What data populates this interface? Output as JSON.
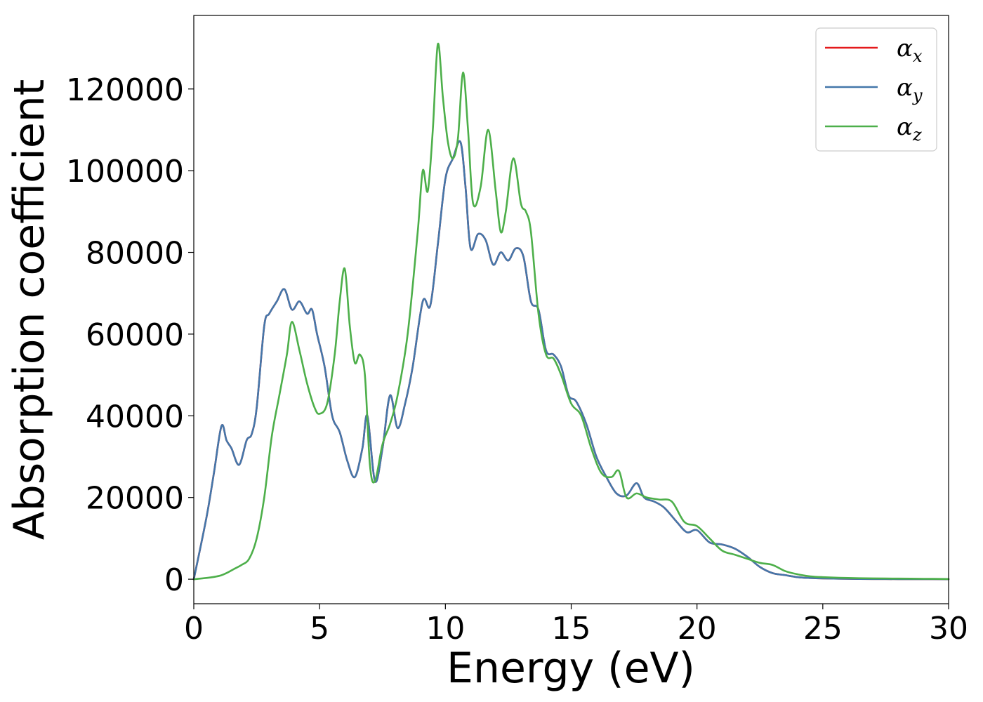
{
  "chart_data": {
    "type": "line",
    "title": "",
    "xlabel": "Energy (eV)",
    "ylabel": "Absorption coefficient",
    "xlim": [
      0,
      30
    ],
    "ylim": [
      -6000,
      138000
    ],
    "xticks": [
      0,
      5,
      10,
      15,
      20,
      25,
      30
    ],
    "xtick_labels": [
      "0",
      "5",
      "10",
      "15",
      "20",
      "25",
      "30"
    ],
    "yticks": [
      0,
      20000,
      40000,
      60000,
      80000,
      100000,
      120000
    ],
    "ytick_labels": [
      "0",
      "20000",
      "40000",
      "60000",
      "80000",
      "100000",
      "120000"
    ],
    "grid": false,
    "legend_position": "top-right",
    "series": [
      {
        "name": "α_x",
        "label_main": "α",
        "label_sub": "x",
        "color": "#e41a1c",
        "x": [
          0,
          0.5,
          0.8,
          1.1,
          1.3,
          1.5,
          1.8,
          2.1,
          2.3,
          2.5,
          2.8,
          3.0,
          3.3,
          3.6,
          3.9,
          4.2,
          4.5,
          4.7,
          4.9,
          5.2,
          5.5,
          5.8,
          6.1,
          6.4,
          6.7,
          6.9,
          7.2,
          7.5,
          7.8,
          8.1,
          8.4,
          8.7,
          9.1,
          9.4,
          9.7,
          10.0,
          10.3,
          10.6,
          10.8,
          11.0,
          11.3,
          11.6,
          11.9,
          12.2,
          12.5,
          12.8,
          13.1,
          13.4,
          13.7,
          14.0,
          14.3,
          14.6,
          14.9,
          15.2,
          15.6,
          16.0,
          16.4,
          16.8,
          17.2,
          17.6,
          17.9,
          18.3,
          18.7,
          19.2,
          19.6,
          20.0,
          20.5,
          21.0,
          21.5,
          22.0,
          22.5,
          23.0,
          23.5,
          24.0,
          24.5,
          25.0,
          26.0,
          27.0,
          28.0,
          29.0,
          30.0
        ],
        "y": [
          0,
          15000,
          26000,
          37500,
          34000,
          32000,
          28000,
          34000,
          35500,
          42000,
          62000,
          65000,
          68000,
          71000,
          66000,
          68000,
          65000,
          66000,
          60000,
          52000,
          40000,
          36000,
          29000,
          25000,
          32000,
          40000,
          24000,
          32000,
          45000,
          37000,
          43000,
          52000,
          68000,
          67000,
          82000,
          98000,
          103000,
          107000,
          96000,
          81000,
          84500,
          83000,
          77000,
          80000,
          78000,
          81000,
          79000,
          68000,
          66000,
          56000,
          55000,
          52000,
          45000,
          43500,
          38000,
          30000,
          25000,
          21000,
          20500,
          23500,
          20000,
          19000,
          17500,
          14000,
          11500,
          12000,
          9000,
          8500,
          7500,
          5500,
          3000,
          1500,
          1000,
          500,
          300,
          200,
          100,
          50,
          30,
          20,
          10
        ]
      },
      {
        "name": "α_y",
        "label_main": "α",
        "label_sub": "y",
        "color": "#4477aa",
        "x": [
          0,
          0.5,
          0.8,
          1.1,
          1.3,
          1.5,
          1.8,
          2.1,
          2.3,
          2.5,
          2.8,
          3.0,
          3.3,
          3.6,
          3.9,
          4.2,
          4.5,
          4.7,
          4.9,
          5.2,
          5.5,
          5.8,
          6.1,
          6.4,
          6.7,
          6.9,
          7.2,
          7.5,
          7.8,
          8.1,
          8.4,
          8.7,
          9.1,
          9.4,
          9.7,
          10.0,
          10.3,
          10.6,
          10.8,
          11.0,
          11.3,
          11.6,
          11.9,
          12.2,
          12.5,
          12.8,
          13.1,
          13.4,
          13.7,
          14.0,
          14.3,
          14.6,
          14.9,
          15.2,
          15.6,
          16.0,
          16.4,
          16.8,
          17.2,
          17.6,
          17.9,
          18.3,
          18.7,
          19.2,
          19.6,
          20.0,
          20.5,
          21.0,
          21.5,
          22.0,
          22.5,
          23.0,
          23.5,
          24.0,
          24.5,
          25.0,
          26.0,
          27.0,
          28.0,
          29.0,
          30.0
        ],
        "y": [
          0,
          15000,
          26000,
          37500,
          34000,
          32000,
          28000,
          34000,
          35500,
          42000,
          62000,
          65000,
          68000,
          71000,
          66000,
          68000,
          65000,
          66000,
          60000,
          52000,
          40000,
          36000,
          29000,
          25000,
          32000,
          40000,
          24000,
          32000,
          45000,
          37000,
          43000,
          52000,
          68000,
          67000,
          82000,
          98000,
          103000,
          107000,
          96000,
          81000,
          84500,
          83000,
          77000,
          80000,
          78000,
          81000,
          79000,
          68000,
          66000,
          56000,
          55000,
          52000,
          45000,
          43500,
          38000,
          30000,
          25000,
          21000,
          20500,
          23500,
          20000,
          19000,
          17500,
          14000,
          11500,
          12000,
          9000,
          8500,
          7500,
          5500,
          3000,
          1500,
          1000,
          500,
          300,
          200,
          100,
          50,
          30,
          20,
          10
        ]
      },
      {
        "name": "α_z",
        "label_main": "α",
        "label_sub": "z",
        "color": "#4daf4a",
        "x": [
          0,
          0.5,
          1.0,
          1.3,
          1.6,
          1.9,
          2.2,
          2.5,
          2.8,
          3.1,
          3.4,
          3.7,
          3.9,
          4.2,
          4.5,
          4.8,
          5.0,
          5.3,
          5.6,
          5.8,
          6.0,
          6.2,
          6.4,
          6.6,
          6.8,
          7.0,
          7.2,
          7.5,
          7.8,
          8.1,
          8.5,
          8.9,
          9.1,
          9.3,
          9.5,
          9.7,
          9.9,
          10.1,
          10.3,
          10.5,
          10.7,
          10.9,
          11.1,
          11.4,
          11.7,
          12.0,
          12.2,
          12.4,
          12.7,
          13.0,
          13.2,
          13.4,
          13.7,
          14.0,
          14.3,
          14.6,
          15.0,
          15.4,
          15.8,
          16.2,
          16.6,
          16.9,
          17.2,
          17.6,
          18.0,
          18.5,
          19.0,
          19.5,
          20.0,
          20.5,
          21.0,
          21.5,
          22.0,
          22.5,
          23.0,
          23.5,
          24.0,
          24.5,
          25.0,
          26.0,
          27.0,
          28.0,
          29.0,
          30.0
        ],
        "y": [
          0,
          300,
          800,
          1500,
          2500,
          3500,
          5000,
          10000,
          20000,
          35000,
          45000,
          55000,
          63000,
          56000,
          48000,
          42000,
          40500,
          43000,
          55000,
          68000,
          76000,
          62000,
          53000,
          55000,
          50000,
          28000,
          24000,
          33000,
          38000,
          45000,
          60000,
          85000,
          100000,
          95000,
          110000,
          131000,
          118000,
          107000,
          103000,
          108000,
          124000,
          110000,
          92000,
          96000,
          110000,
          95000,
          85000,
          90000,
          103000,
          92000,
          90000,
          85000,
          65000,
          55000,
          54000,
          50000,
          43000,
          40000,
          32000,
          26000,
          25000,
          26500,
          20000,
          21000,
          20000,
          19500,
          19000,
          14000,
          13000,
          10000,
          7000,
          6000,
          5000,
          4000,
          3500,
          2000,
          1200,
          700,
          500,
          300,
          200,
          150,
          100,
          50
        ]
      }
    ]
  }
}
